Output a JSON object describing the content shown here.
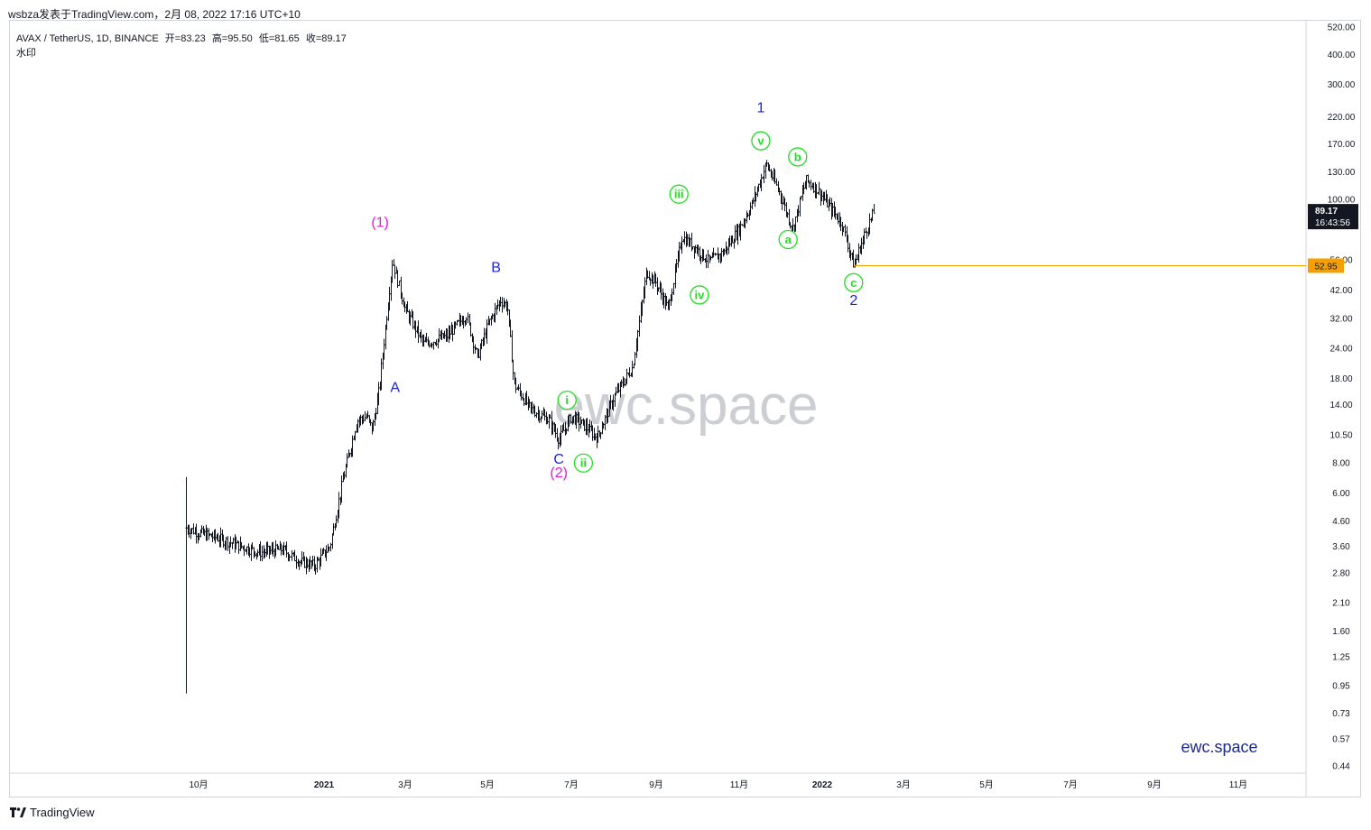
{
  "header": {
    "publisher": "wsbza发表于TradingView.com，2月 08, 2022 17:16 UTC+10"
  },
  "legend": {
    "symbol": "AVAX / TetherUS, 1D, BINANCE",
    "open_label": "开=83.23",
    "high_label": "高=95.50",
    "low_label": "低=81.65",
    "close_label": "收=89.17",
    "indicator": "水印"
  },
  "footer": {
    "brand": "TradingView"
  },
  "colors": {
    "candle": "#131722",
    "wave_blue": "#1e22e0",
    "wave_pink": "#e41ad6",
    "wave_green": "#1ee01e",
    "level_line": "#f5a000",
    "price_tag_bg": "#131722"
  },
  "chart_data": {
    "type": "line",
    "scale": "log",
    "x_axis_ticks": [
      "10月",
      "2021",
      "3月",
      "5月",
      "7月",
      "9月",
      "11月",
      "2022",
      "3月",
      "5月",
      "7月",
      "9月",
      "11月"
    ],
    "y_axis_ticks": [
      "520.00",
      "400.00",
      "300.00",
      "220.00",
      "170.00",
      "130.00",
      "100.00",
      "56.00",
      "42.00",
      "32.00",
      "24.00",
      "18.00",
      "14.00",
      "10.50",
      "8.00",
      "6.00",
      "4.60",
      "3.60",
      "2.80",
      "2.10",
      "1.60",
      "1.25",
      "0.95",
      "0.73",
      "0.57",
      "0.44"
    ],
    "ylim": [
      0.44,
      520
    ],
    "last_price": "89.17",
    "countdown": "16:43:56",
    "level_price": "52.95",
    "level": 52.95,
    "watermark": "ewc.space",
    "brand_label": "ewc.space",
    "series": [
      {
        "x": [
          "2020-09-22",
          "2020-10-01",
          "2020-10-15",
          "2020-11-01",
          "2020-11-15",
          "2020-12-01",
          "2020-12-15",
          "2020-12-25",
          "2021-01-05",
          "2021-01-15",
          "2021-01-25",
          "2021-02-01",
          "2021-02-05",
          "2021-02-10",
          "2021-02-15",
          "2021-02-20",
          "2021-03-01",
          "2021-03-15",
          "2021-04-01",
          "2021-04-15",
          "2021-04-23",
          "2021-05-01",
          "2021-05-10",
          "2021-05-15",
          "2021-05-20",
          "2021-06-01",
          "2021-06-15",
          "2021-06-22",
          "2021-07-01",
          "2021-07-10",
          "2021-07-20",
          "2021-08-01",
          "2021-08-15",
          "2021-08-25",
          "2021-09-01",
          "2021-09-10",
          "2021-09-20",
          "2021-10-01",
          "2021-10-10",
          "2021-10-20",
          "2021-11-01",
          "2021-11-10",
          "2021-11-21",
          "2021-12-01",
          "2021-12-10",
          "2021-12-20",
          "2021-12-28",
          "2022-01-05",
          "2022-01-15",
          "2022-01-24",
          "2022-02-01",
          "2022-02-08"
        ],
        "y": [
          4.3,
          4.1,
          3.9,
          3.6,
          3.4,
          3.5,
          3.1,
          3.0,
          3.6,
          7.0,
          12.0,
          12.5,
          11.0,
          16.0,
          30.0,
          56.0,
          35.0,
          25.0,
          27.0,
          33.0,
          22.0,
          30.0,
          38.0,
          36.0,
          17.0,
          13.5,
          12.0,
          10.0,
          12.5,
          11.5,
          10.2,
          15.0,
          20.0,
          50.0,
          45.0,
          35.0,
          70.0,
          62.0,
          55.0,
          60.0,
          75.0,
          95.0,
          140.0,
          105.0,
          75.0,
          120.0,
          110.0,
          95.0,
          80.0,
          52.95,
          72.0,
          89.17
        ]
      }
    ],
    "annotations": [
      {
        "text": "(1)",
        "style": "pink",
        "x": "2021-02-11",
        "y": 80.0
      },
      {
        "text": "A",
        "style": "blue",
        "x": "2021-02-22",
        "y": 16.5
      },
      {
        "text": "B",
        "style": "blue",
        "x": "2021-05-07",
        "y": 52.0
      },
      {
        "text": "C",
        "style": "blue",
        "x": "2021-06-22",
        "y": 8.3
      },
      {
        "text": "(2)",
        "style": "pink",
        "x": "2021-06-22",
        "y": 7.3
      },
      {
        "text": "i",
        "style": "green",
        "x": "2021-06-28",
        "y": 14.6
      },
      {
        "text": "ii",
        "style": "green",
        "x": "2021-07-10",
        "y": 8.0
      },
      {
        "text": "iii",
        "style": "green",
        "x": "2021-09-18",
        "y": 105.0
      },
      {
        "text": "iv",
        "style": "green",
        "x": "2021-10-03",
        "y": 40.0
      },
      {
        "text": "v",
        "style": "green",
        "x": "2021-11-17",
        "y": 175.0
      },
      {
        "text": "1",
        "style": "blue",
        "x": "2021-11-17",
        "y": 240.0
      },
      {
        "text": "a",
        "style": "green",
        "x": "2021-12-07",
        "y": 68.0
      },
      {
        "text": "b",
        "style": "green",
        "x": "2021-12-14",
        "y": 150.0
      },
      {
        "text": "c",
        "style": "green",
        "x": "2022-01-24",
        "y": 45.0
      },
      {
        "text": "2",
        "style": "blue",
        "x": "2022-01-24",
        "y": 38.0
      }
    ]
  }
}
